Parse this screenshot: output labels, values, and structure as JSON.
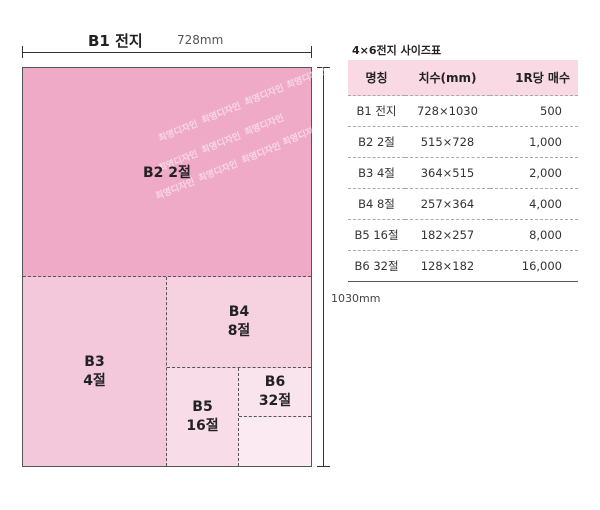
{
  "diagram": {
    "sheet_name": "B1 전지",
    "width_label": "728mm",
    "height_label": "1030mm",
    "watermark": "최영디자인",
    "regions": {
      "b2": {
        "name": "B2",
        "cuts": "2절",
        "label": "B2 2절"
      },
      "b3": {
        "name": "B3",
        "cuts": "4절"
      },
      "b4": {
        "name": "B4",
        "cuts": "8절"
      },
      "b5": {
        "name": "B5",
        "cuts": "16절"
      },
      "b6": {
        "name": "B6",
        "cuts": "32절"
      }
    }
  },
  "table": {
    "title": "4×6전지 사이즈표",
    "headers": [
      "명칭",
      "치수(mm)",
      "1R당 매수"
    ],
    "rows": [
      {
        "name": "B1 전지",
        "size": "728×1030",
        "count": "500"
      },
      {
        "name": "B2 2절",
        "size": "515×728",
        "count": "1,000"
      },
      {
        "name": "B3 4절",
        "size": "364×515",
        "count": "2,000"
      },
      {
        "name": "B4 8절",
        "size": "257×364",
        "count": "4,000"
      },
      {
        "name": "B5 16절",
        "size": "182×257",
        "count": "8,000"
      },
      {
        "name": "B6 32절",
        "size": "128×182",
        "count": "16,000"
      }
    ]
  },
  "colors": {
    "b2": "#efaac8",
    "b3": "#f2c8da",
    "b4": "#f6d2e1",
    "b5": "#f8dde8",
    "b6": "#f9e3ec",
    "header": "#f8d9e4"
  }
}
